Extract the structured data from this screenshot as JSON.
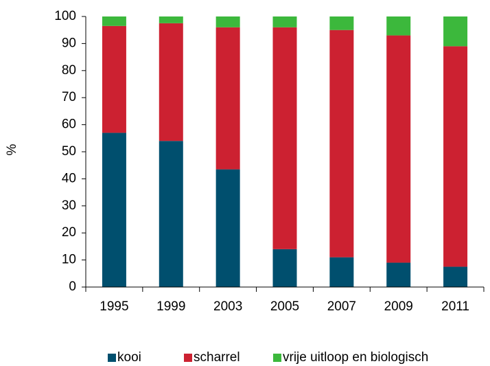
{
  "chart_data": {
    "type": "stacked_bar",
    "ylabel": "%",
    "categories": [
      "1995",
      "1999",
      "2003",
      "2005",
      "2007",
      "2009",
      "2011"
    ],
    "series": [
      {
        "name": "kooi",
        "color": "#004f6e",
        "values": [
          57,
          54,
          43.5,
          14,
          11,
          9,
          7.5
        ]
      },
      {
        "name": "scharrel",
        "color": "#cc2131",
        "values": [
          39.5,
          43.5,
          52.5,
          82,
          84,
          84,
          81.5
        ]
      },
      {
        "name": "vrije uitloop en biologisch",
        "color": "#3cb83c",
        "values": [
          3.5,
          2.5,
          4,
          4,
          5,
          7,
          11
        ]
      }
    ],
    "ylim": [
      0,
      100
    ],
    "yticks": [
      0,
      10,
      20,
      30,
      40,
      50,
      60,
      70,
      80,
      90,
      100
    ],
    "grid": false,
    "legend": "bottom"
  }
}
